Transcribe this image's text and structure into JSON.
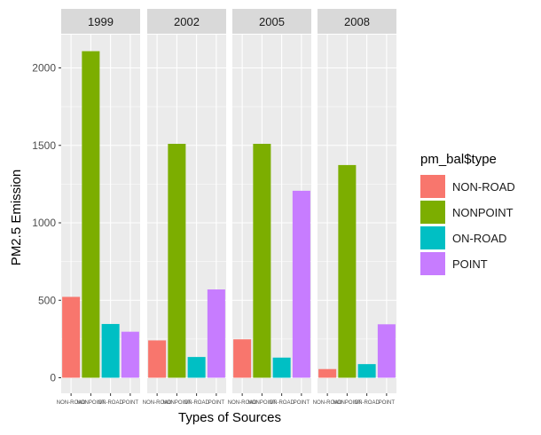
{
  "chart_data": {
    "type": "bar",
    "facets": [
      "1999",
      "2002",
      "2005",
      "2008"
    ],
    "categories": [
      "NON-ROAD",
      "NONPOINT",
      "ON-ROAD",
      "POINT"
    ],
    "series": [
      {
        "name": "NON-ROAD",
        "values": [
          522,
          241,
          248,
          56
        ]
      },
      {
        "name": "NONPOINT",
        "values": [
          2108,
          1510,
          1510,
          1373
        ]
      },
      {
        "name": "ON-ROAD",
        "values": [
          347,
          134,
          130,
          88
        ]
      },
      {
        "name": "POINT",
        "values": [
          297,
          570,
          1207,
          345
        ]
      }
    ],
    "colors": {
      "NON-ROAD": "#F8766D",
      "NONPOINT": "#7CAE00",
      "ON-ROAD": "#00BFC4",
      "POINT": "#C77CFF"
    },
    "xlabel": "Types of Sources",
    "ylabel": "PM2.5 Emission",
    "ylim": [
      0,
      2200
    ],
    "yticks": [
      0,
      500,
      1000,
      1500,
      2000
    ],
    "legend_title": "pm_bal$type",
    "legend_position": "right",
    "panel_background": "#EBEBEB",
    "strip_background": "#D9D9D9",
    "grid": true
  }
}
